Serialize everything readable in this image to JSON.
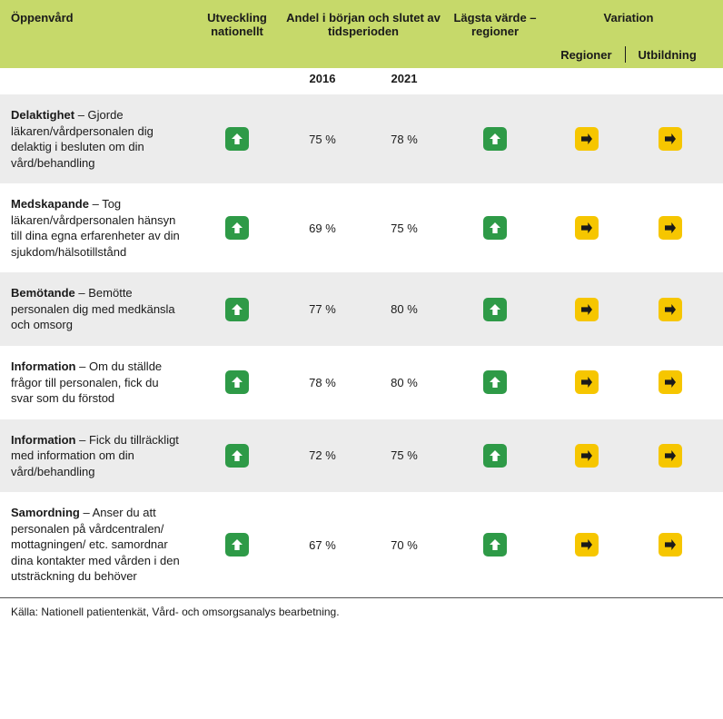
{
  "colors": {
    "header_bg": "#c6d96a",
    "row_alt_bg": "#ececec",
    "row_bg": "#ffffff",
    "up_icon_bg": "#2e9a47",
    "up_icon_fg": "#ffffff",
    "right_icon_bg": "#f6c600",
    "right_icon_fg": "#1a1a1a"
  },
  "headers": {
    "col1": "Öppenvård",
    "col2": "Utveckling nationellt",
    "col3": "Andel i början och slutet av tidsperioden",
    "col4": "Lägsta värde – regioner",
    "col5": "Variation",
    "sub_year1": "2016",
    "sub_year2": "2021",
    "sub_var1": "Regioner",
    "sub_var2": "Utbildning"
  },
  "rows": [
    {
      "title": "Delaktighet",
      "text": " – Gjorde läkaren/vårdpersonalen dig delaktig i besluten om din vård/behandling",
      "dev": "up",
      "y1": "75 %",
      "y2": "78 %",
      "low": "up",
      "vr1": "right",
      "vr2": "right"
    },
    {
      "title": "Medskapande",
      "text": " – Tog läkaren/vårdpersonalen hänsyn till dina egna erfarenheter av din sjukdom/hälsotillstånd",
      "dev": "up",
      "y1": "69 %",
      "y2": "75 %",
      "low": "up",
      "vr1": "right",
      "vr2": "right"
    },
    {
      "title": "Bemötande",
      "text": " – Bemötte personalen dig med medkänsla och omsorg",
      "dev": "up",
      "y1": "77 %",
      "y2": "80 %",
      "low": "up",
      "vr1": "right",
      "vr2": "right"
    },
    {
      "title": "Information",
      "text": " – Om du ställde frågor till personalen, fick du svar som du förstod",
      "dev": "up",
      "y1": "78 %",
      "y2": "80 %",
      "low": "up",
      "vr1": "right",
      "vr2": "right"
    },
    {
      "title": "Information",
      "text": " – Fick du tillräckligt med information om din vård/behandling",
      "dev": "up",
      "y1": "72 %",
      "y2": "75 %",
      "low": "up",
      "vr1": "right",
      "vr2": "right"
    },
    {
      "title": "Samordning",
      "text": " – Anser du att personalen på vårdcentralen/ mottagningen/ etc. samordnar dina kontakter med vården i den utsträckning du behöver",
      "dev": "up",
      "y1": "67 %",
      "y2": "70 %",
      "low": "up",
      "vr1": "right",
      "vr2": "right"
    }
  ],
  "footnote": "Källa: Nationell patientenkät, Vård- och omsorgsanalys bearbetning."
}
